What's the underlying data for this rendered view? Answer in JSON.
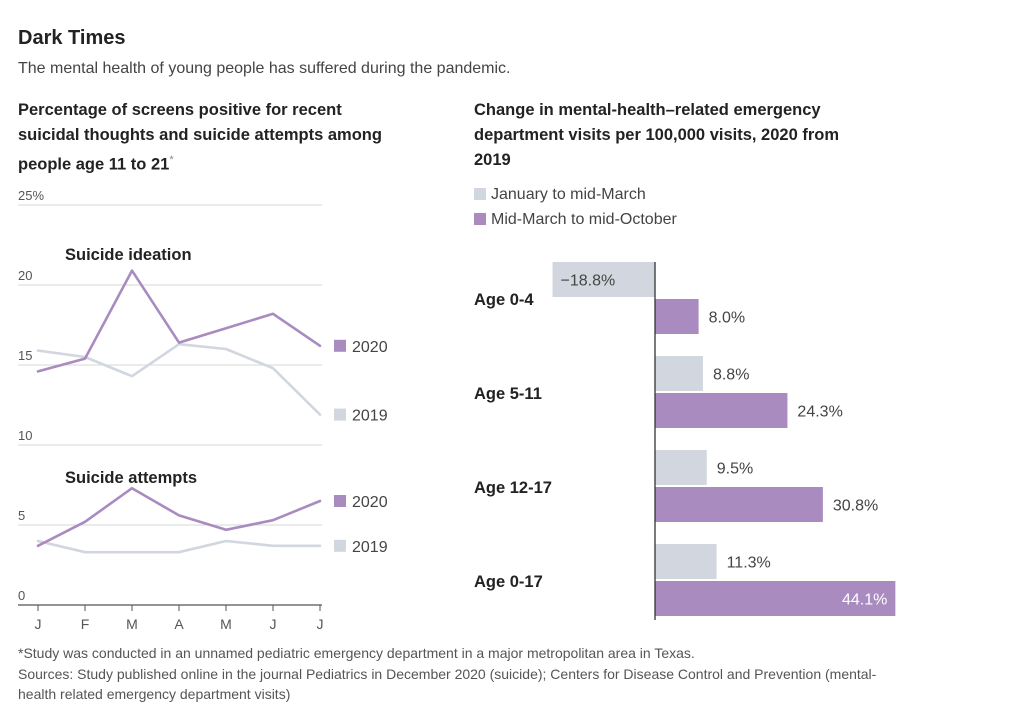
{
  "header": {
    "title": "Dark Times",
    "subtitle": "The mental health of young people has suffered during the pandemic."
  },
  "left_chart": {
    "title": "Percentage of screens positive for recent suicidal thoughts and suicide attempts among people age 11 to 21",
    "footnote_mark": "*",
    "y_tick_labels": [
      "25%",
      "20",
      "15",
      "10",
      "5",
      "0"
    ],
    "panel_labels": [
      "Suicide ideation",
      "Suicide attempts"
    ]
  },
  "right_chart": {
    "title": "Change in mental-health–related emergency department visits per 100,000 visits, 2020 from 2019",
    "legend": [
      "January to mid-March",
      "Mid-March to mid-October"
    ]
  },
  "colors": {
    "purple": "#a98bbf",
    "gray": "#d2d6de",
    "grid": "#d7d7d7",
    "axis": "#555555"
  },
  "chart_data": [
    {
      "type": "line",
      "ylabel": "",
      "ylim": [
        0,
        25
      ],
      "yticks": [
        0,
        5,
        10,
        15,
        20,
        25
      ],
      "ytick_labels": [
        "0",
        "5",
        "10",
        "15",
        "20",
        "25%"
      ],
      "categories": [
        "J",
        "F",
        "M",
        "A",
        "M",
        "J",
        "J"
      ],
      "panels": [
        {
          "label": "Suicide ideation",
          "series": [
            {
              "name": "2020",
              "color": "#a98bbf",
              "values": [
                14.6,
                15.4,
                20.9,
                16.4,
                17.3,
                18.2,
                16.2
              ]
            },
            {
              "name": "2019",
              "color": "#d2d6de",
              "values": [
                15.9,
                15.5,
                14.3,
                16.3,
                16.0,
                14.8,
                11.9
              ]
            }
          ]
        },
        {
          "label": "Suicide attempts",
          "series": [
            {
              "name": "2020",
              "color": "#a98bbf",
              "values": [
                3.7,
                5.2,
                7.3,
                5.6,
                4.7,
                5.3,
                6.5
              ]
            },
            {
              "name": "2019",
              "color": "#d2d6de",
              "values": [
                4.0,
                3.3,
                3.3,
                3.3,
                4.0,
                3.7,
                3.7
              ]
            }
          ]
        }
      ]
    },
    {
      "type": "bar",
      "orientation": "horizontal",
      "categories": [
        "Age 0-4",
        "Age 5-11",
        "Age 12-17",
        "Age 0-17"
      ],
      "series": [
        {
          "name": "January to mid-March",
          "color": "#d2d6de",
          "values": [
            -18.8,
            8.8,
            9.5,
            11.3
          ],
          "labels": [
            "−18.8%",
            "8.8%",
            "9.5%",
            "11.3%"
          ]
        },
        {
          "name": "Mid-March to mid-October",
          "color": "#a98bbf",
          "values": [
            8.0,
            24.3,
            30.8,
            44.1
          ],
          "labels": [
            "8.0%",
            "24.3%",
            "30.8%",
            "44.1%"
          ]
        }
      ]
    }
  ],
  "footer": {
    "note": "*Study was conducted in an unnamed pediatric emergency department in a major metropolitan area in Texas.",
    "sources": "Sources: Study published online in the journal Pediatrics in December 2020 (suicide); Centers for Disease Control and Prevention (mental-health related emergency department visits)"
  }
}
